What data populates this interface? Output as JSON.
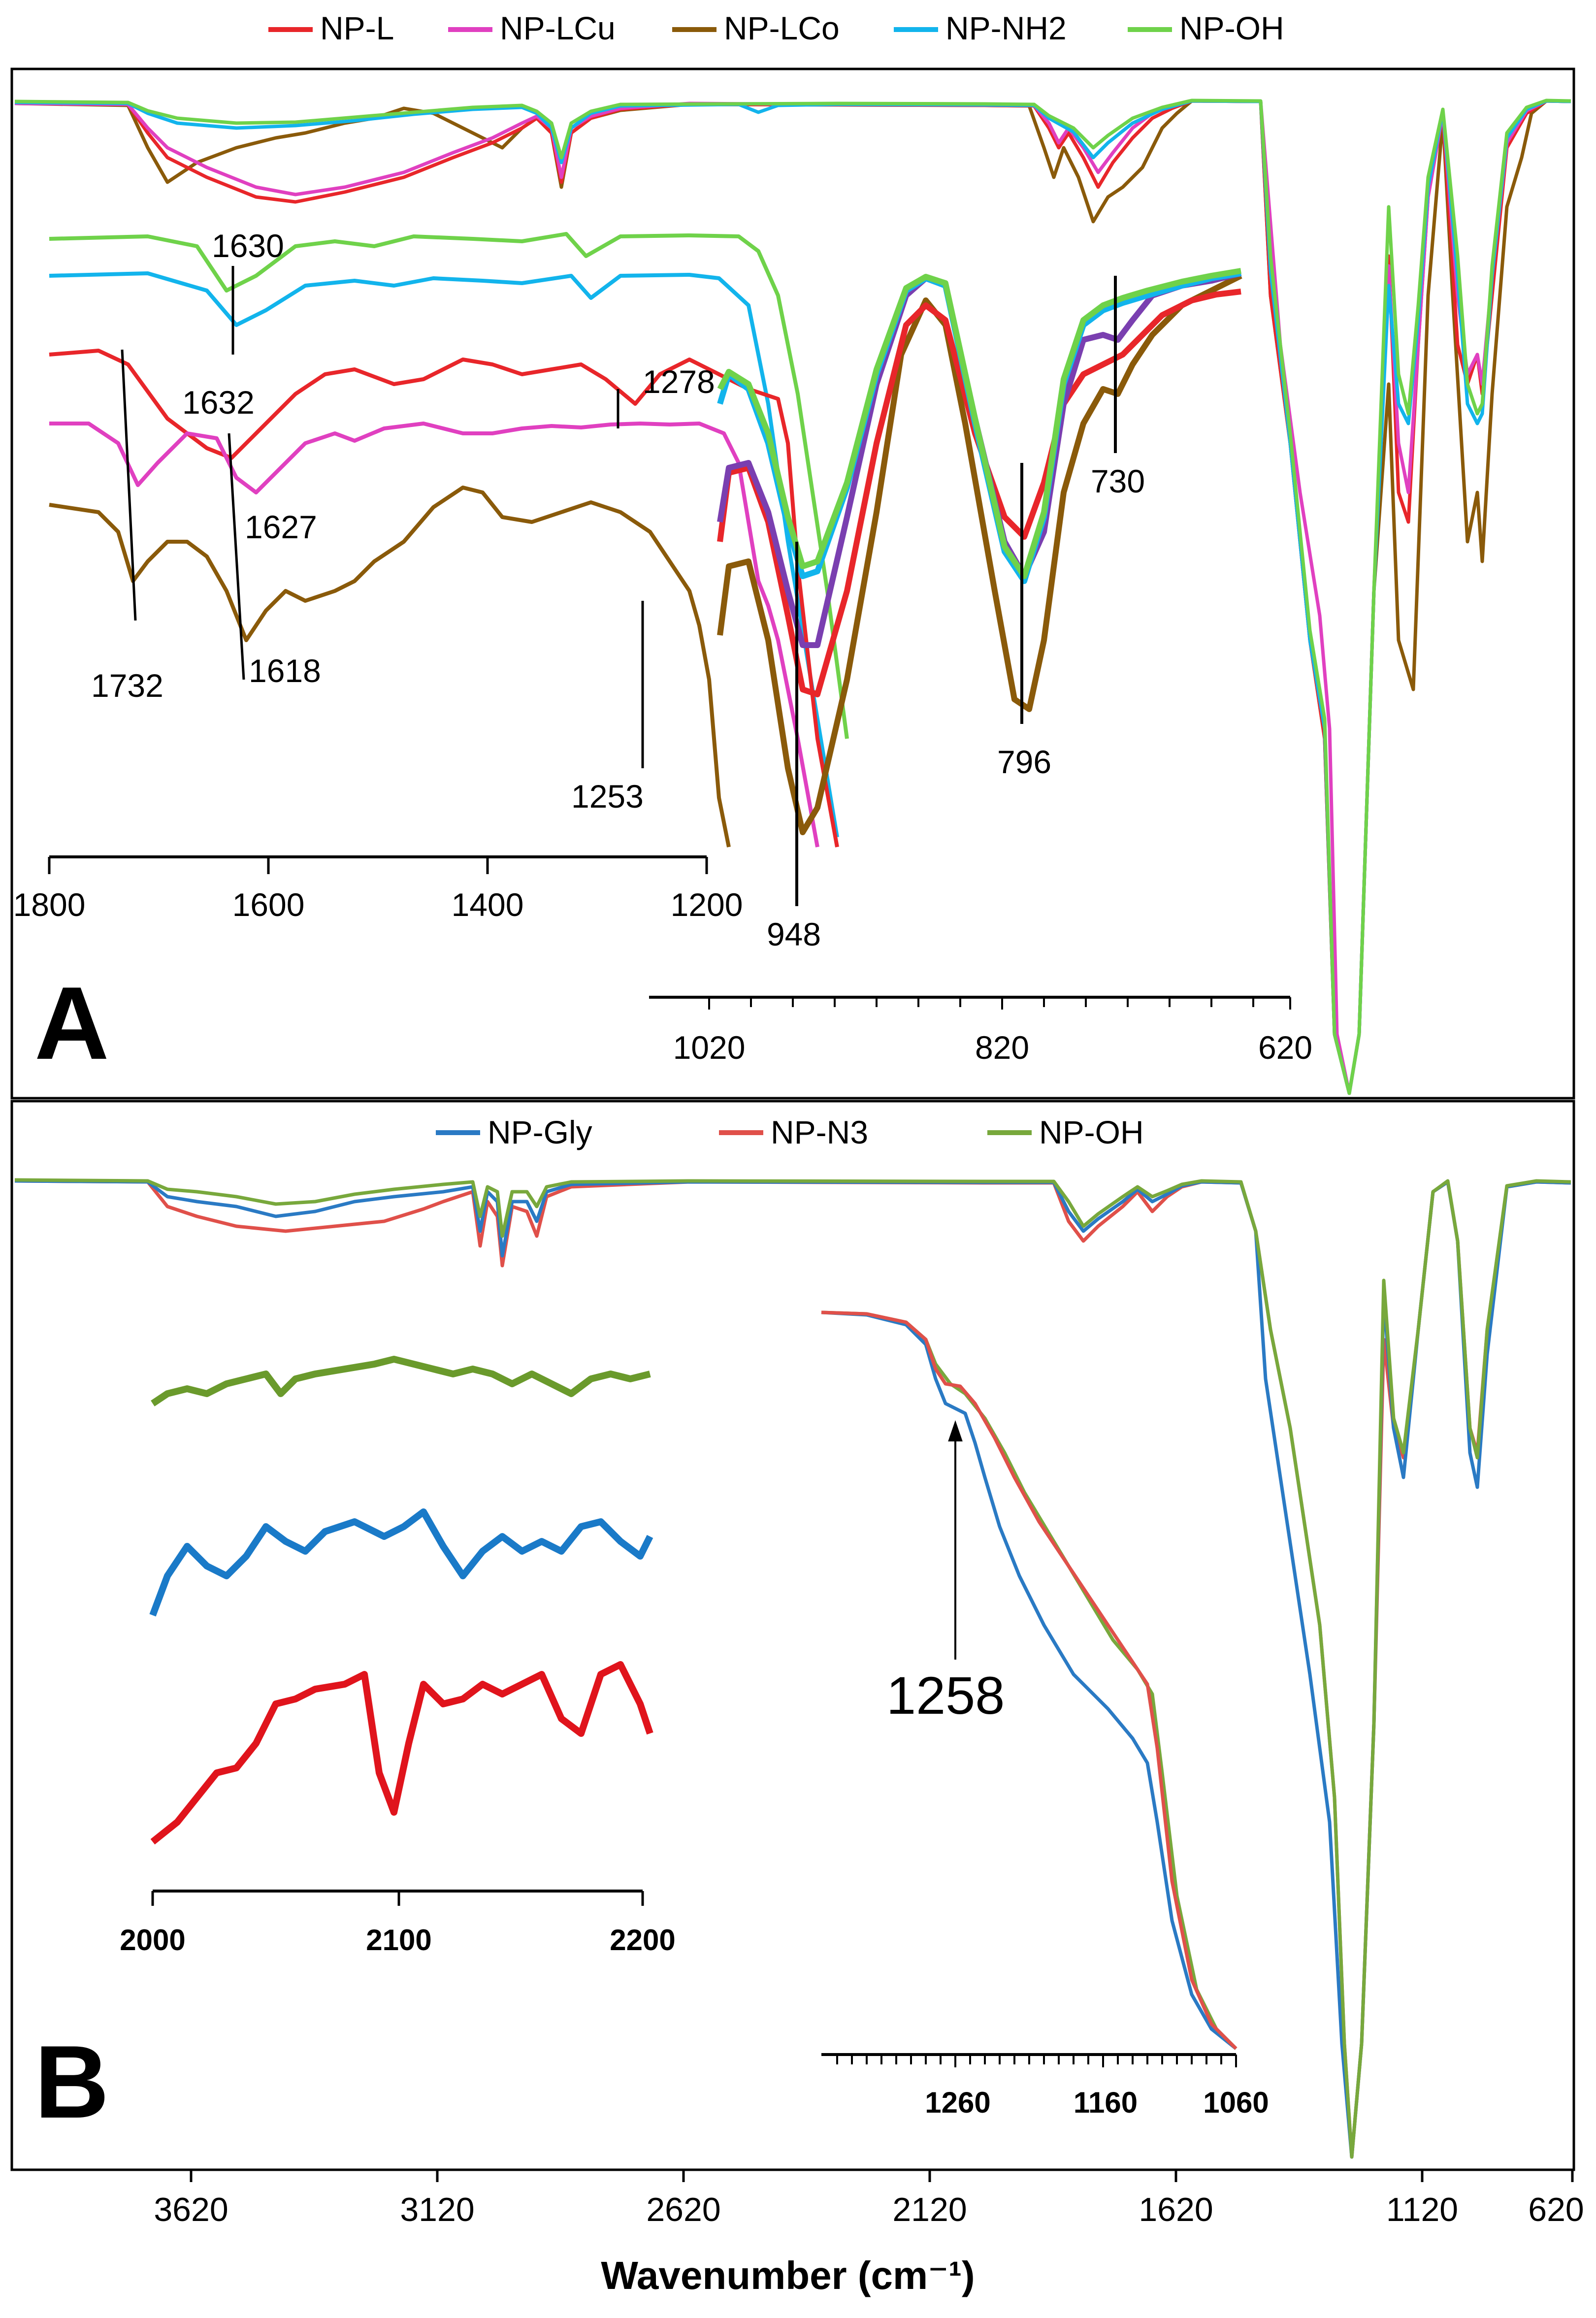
{
  "figure": {
    "xlabel": "Wavenumber (cm⁻¹)",
    "x_ticks": [
      "3620",
      "3120",
      "2620",
      "2120",
      "1620",
      "1120",
      "620"
    ],
    "x_range": [
      4000,
      600
    ]
  },
  "chart_data": [
    {
      "panel": "A",
      "type": "line",
      "title": "",
      "xlabel": "",
      "ylabel": "",
      "legend_position": "top",
      "series": [
        {
          "name": "NP-L",
          "color": "#e8262a"
        },
        {
          "name": "NP-LCu",
          "color": "#e040c0"
        },
        {
          "name": "NP-LCo",
          "color": "#8a5a0a"
        },
        {
          "name": "NP-NH2",
          "color": "#12b4ec"
        },
        {
          "name": "NP-OH",
          "color": "#6fd24a"
        }
      ],
      "insets": [
        {
          "name": "inset-1800-1200",
          "xlim": [
            1800,
            1200
          ],
          "tick_labels": [
            "1800",
            "1600",
            "1400",
            "1200"
          ],
          "annotations": [
            "1630",
            "1632",
            "1278",
            "1627",
            "1732",
            "1618",
            "1253"
          ],
          "peak_positions": [
            1630,
            1632,
            1278,
            1627,
            1732,
            1618,
            1253
          ]
        },
        {
          "name": "inset-1060-620",
          "xlim": [
            1060,
            620
          ],
          "tick_labels": [
            "1020",
            "820",
            "620"
          ],
          "annotations": [
            "948",
            "796",
            "730"
          ],
          "peak_positions": [
            948,
            796,
            730
          ],
          "extra_series_color": "#7a3fb0"
        }
      ]
    },
    {
      "panel": "B",
      "type": "line",
      "title": "",
      "xlabel": "Wavenumber (cm⁻¹)",
      "ylabel": "",
      "legend_position": "top",
      "xlim": [
        4000,
        600
      ],
      "series": [
        {
          "name": "NP-Gly",
          "color": "#2a7ac4"
        },
        {
          "name": "NP-N3",
          "color": "#e0504a"
        },
        {
          "name": "NP-OH",
          "color": "#78a83c"
        }
      ],
      "insets": [
        {
          "name": "inset-2000-2200",
          "xlim": [
            2000,
            2200
          ],
          "tick_labels": [
            "2000",
            "2100",
            "2200"
          ],
          "inset_colors": [
            "#6a9a2c",
            "#1a7ac8",
            "#e0141c"
          ],
          "feature": "azide band at ~2100 in NP-N3"
        },
        {
          "name": "inset-1300-1060",
          "xlim": [
            1360,
            1060
          ],
          "tick_labels": [
            "1260",
            "1160",
            "1060"
          ],
          "annotations": [
            "1258"
          ],
          "peak_positions": [
            1258
          ]
        }
      ]
    }
  ]
}
